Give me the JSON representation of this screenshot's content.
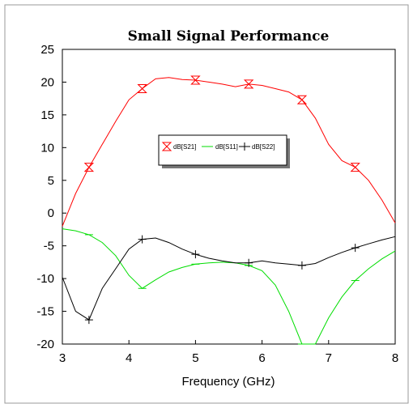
{
  "chart_data": {
    "type": "line",
    "title": "Small Signal Performance",
    "xlabel": "Frequency (GHz)",
    "ylabel": "",
    "xlim": [
      3,
      8
    ],
    "ylim": [
      -20,
      25
    ],
    "xticks": [
      "3",
      "4",
      "5",
      "6",
      "7",
      "8"
    ],
    "yticks": [
      "25",
      "20",
      "15",
      "10",
      "5",
      "0",
      "-5",
      "-10",
      "-15",
      "-20"
    ],
    "grid": false,
    "legend": "center-right",
    "series": [
      {
        "name": "dB[S21]",
        "color": "#ff0000",
        "marker": "hourglass",
        "x": [
          3.0,
          3.2,
          3.4,
          3.6,
          3.8,
          4.0,
          4.2,
          4.4,
          4.6,
          4.8,
          5.0,
          5.2,
          5.4,
          5.6,
          5.8,
          6.0,
          6.2,
          6.4,
          6.6,
          6.8,
          7.0,
          7.2,
          7.4,
          7.6,
          7.8,
          8.0
        ],
        "values": [
          -2.0,
          3.0,
          7.0,
          10.5,
          14.0,
          17.3,
          19.0,
          20.5,
          20.7,
          20.4,
          20.3,
          20.0,
          19.7,
          19.3,
          19.7,
          19.5,
          19.0,
          18.5,
          17.3,
          14.5,
          10.5,
          8.0,
          7.0,
          5.0,
          2.0,
          -1.5
        ],
        "marker_x": [
          3.4,
          4.2,
          5.0,
          5.8,
          6.6,
          7.4
        ]
      },
      {
        "name": "dB[S11]",
        "color": "#00dd00",
        "marker": "dash",
        "x": [
          3.0,
          3.2,
          3.4,
          3.6,
          3.8,
          4.0,
          4.2,
          4.4,
          4.6,
          4.8,
          5.0,
          5.2,
          5.4,
          5.6,
          5.8,
          6.0,
          6.2,
          6.4,
          6.6,
          6.8,
          7.0,
          7.2,
          7.4,
          7.6,
          7.8,
          8.0
        ],
        "values": [
          -2.4,
          -2.7,
          -3.3,
          -4.5,
          -6.5,
          -9.5,
          -11.5,
          -10.2,
          -9.0,
          -8.3,
          -7.8,
          -7.6,
          -7.5,
          -7.6,
          -8.0,
          -8.8,
          -11.0,
          -15.0,
          -20.0,
          -20.0,
          -16.0,
          -12.8,
          -10.3,
          -8.5,
          -7.0,
          -5.8
        ],
        "marker_x": [
          3.4,
          4.2,
          5.0,
          5.8,
          6.6,
          7.4
        ]
      },
      {
        "name": "dB[S22]",
        "color": "#000000",
        "marker": "plus",
        "x": [
          3.0,
          3.2,
          3.4,
          3.6,
          3.8,
          4.0,
          4.2,
          4.4,
          4.6,
          4.8,
          5.0,
          5.2,
          5.4,
          5.6,
          5.8,
          6.0,
          6.2,
          6.4,
          6.6,
          6.8,
          7.0,
          7.2,
          7.4,
          7.6,
          7.8,
          8.0
        ],
        "values": [
          -9.8,
          -15.0,
          -16.3,
          -11.5,
          -8.5,
          -5.5,
          -4.0,
          -3.8,
          -4.5,
          -5.5,
          -6.3,
          -6.9,
          -7.3,
          -7.6,
          -7.6,
          -7.3,
          -7.6,
          -7.8,
          -8.0,
          -7.7,
          -6.8,
          -6.0,
          -5.3,
          -4.7,
          -4.1,
          -3.6
        ],
        "marker_x": [
          3.4,
          4.2,
          5.0,
          5.8,
          6.6,
          7.4
        ]
      }
    ]
  }
}
